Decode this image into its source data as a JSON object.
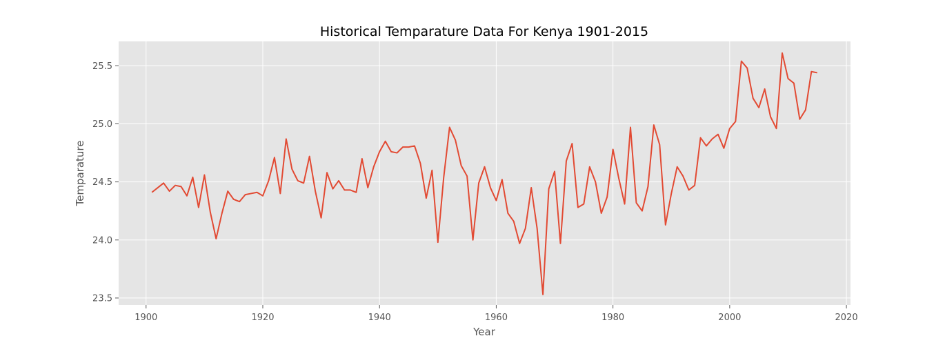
{
  "chart_data": {
    "type": "line",
    "title": "Historical Temparature Data For Kenya 1901-2015",
    "xlabel": "Year",
    "ylabel": "Temparature",
    "xlim": [
      1895.3,
      2020.7
    ],
    "ylim": [
      23.44,
      25.71
    ],
    "xticks": [
      1900,
      1920,
      1940,
      1960,
      1980,
      2000,
      2020
    ],
    "yticks": [
      23.5,
      24.0,
      24.5,
      25.0,
      25.5
    ],
    "ytick_labels": [
      "23.5",
      "24.0",
      "24.5",
      "25.0",
      "25.5"
    ],
    "grid": true,
    "colors": {
      "line": "#e24a33",
      "background": "#e5e5e5",
      "grid": "#ffffff"
    },
    "series": [
      {
        "x": [
          1901,
          1902,
          1903,
          1904,
          1905,
          1906,
          1907,
          1908,
          1909,
          1910,
          1911,
          1912,
          1913,
          1914,
          1915,
          1916,
          1917,
          1918,
          1919,
          1920,
          1921,
          1922,
          1923,
          1924,
          1925,
          1926,
          1927,
          1928,
          1929,
          1930,
          1931,
          1932,
          1933,
          1934,
          1935,
          1936,
          1937,
          1938,
          1939,
          1940,
          1941,
          1942,
          1943,
          1944,
          1945,
          1946,
          1947,
          1948,
          1949,
          1950,
          1951,
          1952,
          1953,
          1954,
          1955,
          1956,
          1957,
          1958,
          1959,
          1960,
          1961,
          1962,
          1963,
          1964,
          1965,
          1966,
          1967,
          1968,
          1969,
          1970,
          1971,
          1972,
          1973,
          1974,
          1975,
          1976,
          1977,
          1978,
          1979,
          1980,
          1981,
          1982,
          1983,
          1984,
          1985,
          1986,
          1987,
          1988,
          1989,
          1990,
          1991,
          1992,
          1993,
          1994,
          1995,
          1996,
          1997,
          1998,
          1999,
          2000,
          2001,
          2002,
          2003,
          2004,
          2005,
          2006,
          2007,
          2008,
          2009,
          2010,
          2011,
          2012,
          2013,
          2014,
          2015
        ],
        "values": [
          24.41,
          24.45,
          24.49,
          24.42,
          24.47,
          24.46,
          24.38,
          24.54,
          24.28,
          24.56,
          24.24,
          24.01,
          24.23,
          24.42,
          24.35,
          24.33,
          24.39,
          24.4,
          24.41,
          24.38,
          24.51,
          24.71,
          24.4,
          24.87,
          24.61,
          24.51,
          24.49,
          24.72,
          24.42,
          24.19,
          24.58,
          24.44,
          24.51,
          24.43,
          24.43,
          24.41,
          24.7,
          24.45,
          24.63,
          24.76,
          24.85,
          24.76,
          24.75,
          24.8,
          24.8,
          24.81,
          24.66,
          24.36,
          24.6,
          23.98,
          24.54,
          24.97,
          24.86,
          24.64,
          24.55,
          24.0,
          24.49,
          24.63,
          24.45,
          24.34,
          24.52,
          24.23,
          24.16,
          23.97,
          24.1,
          24.45,
          24.1,
          23.53,
          24.44,
          24.59,
          23.97,
          24.68,
          24.83,
          24.28,
          24.31,
          24.63,
          24.5,
          24.23,
          24.37,
          24.78,
          24.53,
          24.31,
          24.97,
          24.32,
          24.25,
          24.46,
          24.99,
          24.82,
          24.13,
          24.4,
          24.63,
          24.55,
          24.43,
          24.47,
          24.88,
          24.81,
          24.87,
          24.91,
          24.79,
          24.96,
          25.02,
          25.54,
          25.48,
          25.22,
          25.14,
          25.3,
          25.06,
          24.96,
          25.61,
          25.39,
          25.35,
          25.04,
          25.12,
          25.45,
          25.44
        ]
      }
    ]
  }
}
